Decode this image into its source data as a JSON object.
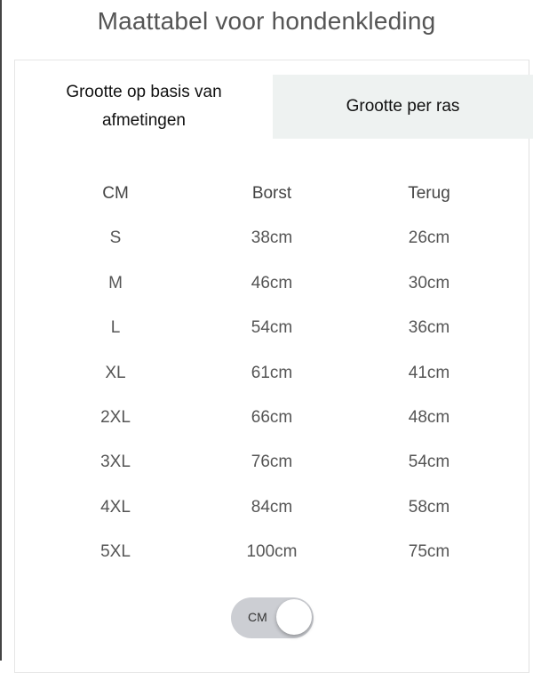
{
  "title": "Maattabel voor hondenkleding",
  "tabs": [
    {
      "label": "Grootte op basis van afmetingen",
      "active": true
    },
    {
      "label": "Grootte per ras",
      "active": false
    }
  ],
  "table": {
    "headers": [
      "CM",
      "Borst",
      "Terug"
    ],
    "rows": [
      [
        "S",
        "38cm",
        "26cm"
      ],
      [
        "M",
        "46cm",
        "30cm"
      ],
      [
        "L",
        "54cm",
        "36cm"
      ],
      [
        "XL",
        "61cm",
        "41cm"
      ],
      [
        "2XL",
        "66cm",
        "48cm"
      ],
      [
        "3XL",
        "76cm",
        "54cm"
      ],
      [
        "4XL",
        "84cm",
        "58cm"
      ],
      [
        "5XL",
        "100cm",
        "75cm"
      ]
    ]
  },
  "unit_toggle": {
    "label": "CM",
    "on": true
  },
  "colors": {
    "inactive_tab_bg": "#eef2f1",
    "toggle_track": "#ccced3"
  }
}
